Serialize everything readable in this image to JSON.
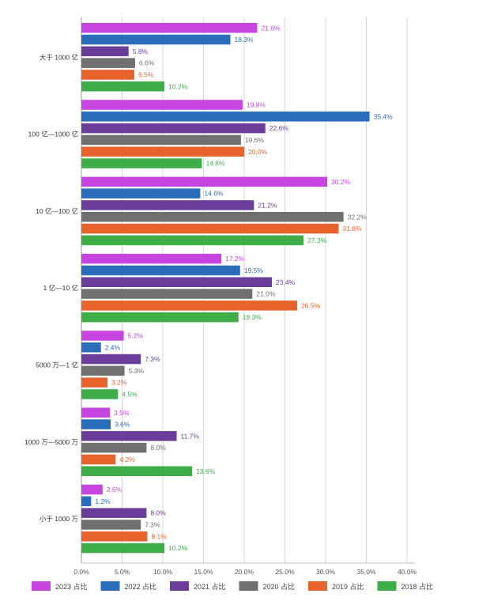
{
  "chart_data": {
    "type": "bar",
    "orientation": "horizontal",
    "categories": [
      "大于 1000 亿",
      "100 亿—1000 亿",
      "10 亿—100 亿",
      "1 亿—10 亿",
      "5000 万—1 亿",
      "1000 万—5000 万",
      "小于 1000 万"
    ],
    "series": [
      {
        "name": "2023 占比",
        "color": "#c744e0",
        "values": [
          21.6,
          19.8,
          30.2,
          17.2,
          5.2,
          3.5,
          2.6
        ]
      },
      {
        "name": "2022 占比",
        "color": "#2a6ebb",
        "values": [
          18.3,
          35.4,
          14.6,
          19.5,
          2.4,
          3.6,
          1.2
        ]
      },
      {
        "name": "2021 占比",
        "color": "#6a3d9a",
        "values": [
          5.8,
          22.6,
          21.2,
          23.4,
          7.3,
          11.7,
          8.0
        ]
      },
      {
        "name": "2020 占比",
        "color": "#707070",
        "values": [
          6.6,
          19.6,
          32.2,
          21.0,
          5.3,
          8.0,
          7.3
        ]
      },
      {
        "name": "2019 占比",
        "color": "#e8622c",
        "values": [
          6.5,
          20.0,
          31.6,
          26.5,
          3.2,
          4.2,
          8.1
        ]
      },
      {
        "name": "2018 占比",
        "color": "#3fae49",
        "values": [
          10.2,
          14.8,
          27.3,
          19.3,
          4.5,
          13.6,
          10.2
        ]
      }
    ],
    "xlim": [
      0,
      40
    ],
    "xticks": [
      0,
      5,
      10,
      15,
      20,
      25,
      30,
      35,
      40
    ],
    "tick_suffix": "%",
    "value_suffix": "%",
    "grid": true,
    "legend_position": "bottom",
    "title": "",
    "xlabel": "",
    "ylabel": ""
  }
}
